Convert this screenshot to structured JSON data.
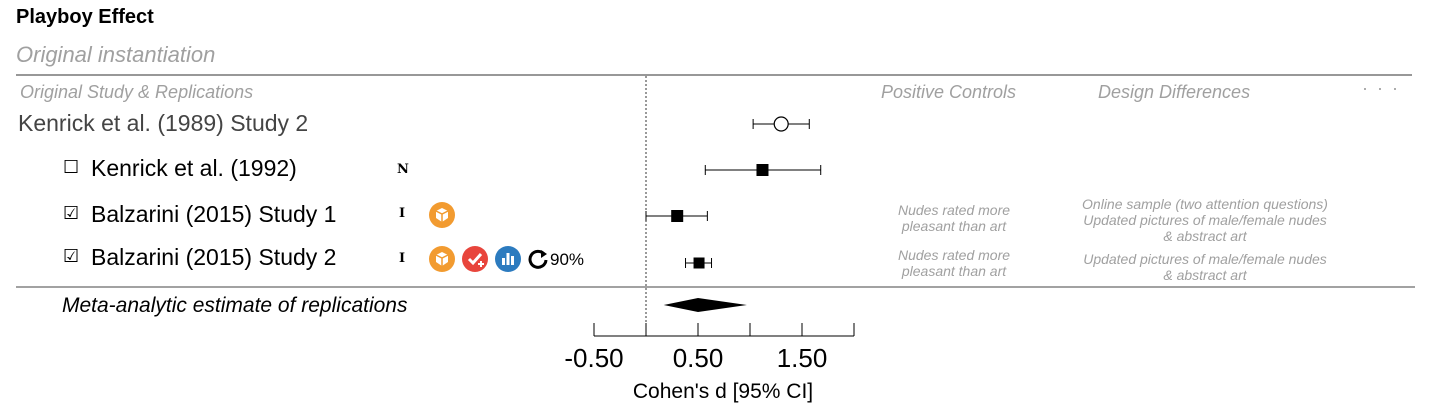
{
  "title": "Playboy Effect",
  "subtitle": "Original instantiation",
  "headers": {
    "studies": "Original Study & Replications",
    "positive_controls": "Positive Controls",
    "design_differences": "Design Differences",
    "more": "· · ·"
  },
  "meta_label": "Meta-analytic estimate of replications",
  "xlabel": "Cohen's d [95% CI]",
  "icons": {
    "open_materials": "open-materials-icon",
    "preregistered": "preregistered-icon",
    "open_data": "open-data-icon",
    "reproducibility": "reproducibility-icon",
    "checkbox_empty": "checkbox-empty-icon",
    "checkbox_checked": "checkbox-checked-icon",
    "colors": {
      "orange": "#f29b30",
      "red": "#e8453c",
      "blue": "#2c7bbf"
    }
  },
  "chart_data": {
    "type": "forest",
    "xlim": [
      -0.5,
      2.0
    ],
    "xticks": [
      -0.5,
      0.0,
      0.5,
      1.0,
      1.5,
      2.0
    ],
    "xtick_labels": [
      "-0.50",
      "0.50",
      "1.50"
    ],
    "xtick_label_values": [
      -0.5,
      0.5,
      1.5
    ],
    "reference_line": 0,
    "original": {
      "label": "Kenrick et al. (1989) Study 2",
      "estimate": 1.3,
      "ci": [
        1.03,
        1.57
      ],
      "marker": "open-circle"
    },
    "replications": [
      {
        "label": "Kenrick et al. (1992)",
        "checked": false,
        "badge": "N",
        "estimate": 1.12,
        "ci": [
          0.57,
          1.68
        ],
        "marker": "square",
        "positive_control": "",
        "design_differences": "",
        "reproducibility": ""
      },
      {
        "label": "Balzarini (2015) Study 1",
        "checked": true,
        "badge": "I",
        "estimate": 0.3,
        "ci": [
          0.0,
          0.59
        ],
        "marker": "square",
        "open_materials": true,
        "positive_control": "Nudes rated more pleasant than art",
        "design_differences": "Online sample (two attention questions) Updated pictures of male/female nudes & abstract art"
      },
      {
        "label": "Balzarini (2015) Study 2",
        "checked": true,
        "badge": "I",
        "estimate": 0.51,
        "ci": [
          0.38,
          0.63
        ],
        "marker": "square",
        "open_materials": true,
        "preregistered": true,
        "open_data": true,
        "reproducibility": "90%",
        "positive_control": "Nudes rated more pleasant than art",
        "design_differences": "Updated pictures of male/female nudes & abstract art"
      }
    ],
    "meta_estimate": {
      "estimate": 0.5,
      "ci": [
        0.17,
        0.97
      ]
    }
  },
  "notes": {
    "pc1_line1": "Nudes rated more",
    "pc1_line2": "pleasant than art",
    "dd1_line1": "Online sample (two attention questions)",
    "dd1_line2": "Updated pictures of male/female nudes",
    "dd1_line3": "& abstract art",
    "pc2_line1": "Nudes rated more",
    "pc2_line2": "pleasant than art",
    "dd2_line1": "Updated pictures of male/female nudes",
    "dd2_line2": "& abstract art"
  }
}
